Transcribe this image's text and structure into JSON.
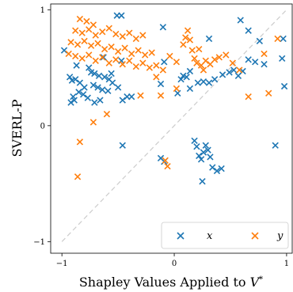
{
  "chart_data": {
    "type": "scatter",
    "xlabel": "Shapley Values Applied to V*",
    "xlabel_main": "Shapley Values Applied to ",
    "xlabel_var": "V",
    "xlabel_sup": "*",
    "ylabel": "SVERL-P",
    "xlim": [
      -1.1,
      1.05
    ],
    "ylim": [
      -1.1,
      1.05
    ],
    "xticks": [
      -1,
      0,
      1
    ],
    "yticks": [
      -1,
      0,
      1
    ],
    "xtick_labels": [
      "−1",
      "0",
      "1"
    ],
    "ytick_labels": [
      "−1",
      "0",
      "1"
    ],
    "grid": false,
    "legend_position": "bottom-right",
    "reference_line": {
      "style": "dashed",
      "color": "#cccccc",
      "from": [
        -1,
        -1
      ],
      "to": [
        1,
        1
      ]
    },
    "marker": "x",
    "series": [
      {
        "name": "x",
        "color": "#1f77b4",
        "points": [
          [
            -0.51,
            0.95
          ],
          [
            -0.47,
            0.95
          ],
          [
            -0.1,
            0.85
          ],
          [
            -0.98,
            0.65
          ],
          [
            -0.87,
            0.52
          ],
          [
            -0.93,
            0.42
          ],
          [
            -0.91,
            0.39
          ],
          [
            -0.88,
            0.4
          ],
          [
            -0.84,
            0.37
          ],
          [
            -0.8,
            0.33
          ],
          [
            -0.76,
            0.5
          ],
          [
            -0.74,
            0.46
          ],
          [
            -0.71,
            0.45
          ],
          [
            -0.67,
            0.43
          ],
          [
            -0.62,
            0.42
          ],
          [
            -0.58,
            0.4
          ],
          [
            -0.72,
            0.35
          ],
          [
            -0.68,
            0.33
          ],
          [
            -0.64,
            0.31
          ],
          [
            -0.59,
            0.3
          ],
          [
            -0.55,
            0.37
          ],
          [
            -0.5,
            0.33
          ],
          [
            -0.46,
            0.22
          ],
          [
            -0.42,
            0.25
          ],
          [
            -0.9,
            0.25
          ],
          [
            -0.92,
            0.2
          ],
          [
            -0.89,
            0.22
          ],
          [
            -0.85,
            0.29
          ],
          [
            -0.81,
            0.27
          ],
          [
            -0.77,
            0.24
          ],
          [
            -0.71,
            0.2
          ],
          [
            -0.66,
            0.22
          ],
          [
            -0.47,
            0.56
          ],
          [
            -0.63,
            0.59
          ],
          [
            -0.56,
            0.45
          ],
          [
            -0.12,
            0.36
          ],
          [
            0.06,
            0.4
          ],
          [
            0.08,
            0.43
          ],
          [
            0.11,
            0.42
          ],
          [
            0.14,
            0.47
          ],
          [
            0.21,
            0.37
          ],
          [
            0.26,
            0.38
          ],
          [
            0.31,
            0.37
          ],
          [
            0.36,
            0.4
          ],
          [
            0.43,
            0.44
          ],
          [
            0.49,
            0.46
          ],
          [
            0.53,
            0.48
          ],
          [
            0.57,
            0.43
          ],
          [
            0.61,
            0.47
          ],
          [
            0.66,
            0.57
          ],
          [
            0.72,
            0.55
          ],
          [
            0.8,
            0.53
          ],
          [
            0.31,
            0.75
          ],
          [
            0.59,
            0.91
          ],
          [
            0.66,
            0.82
          ],
          [
            0.76,
            0.73
          ],
          [
            0.97,
            0.75
          ],
          [
            0.96,
            0.58
          ],
          [
            0.98,
            0.34
          ],
          [
            0.9,
            -0.17
          ],
          [
            0.03,
            0.28
          ],
          [
            0.14,
            0.32
          ],
          [
            -0.09,
            0.55
          ],
          [
            -0.46,
            -0.17
          ],
          [
            -0.12,
            -0.28
          ],
          [
            -0.09,
            -0.31
          ],
          [
            0.18,
            -0.13
          ],
          [
            0.2,
            -0.18
          ],
          [
            0.22,
            -0.26
          ],
          [
            0.24,
            -0.29
          ],
          [
            0.26,
            -0.23
          ],
          [
            0.28,
            -0.17
          ],
          [
            0.3,
            -0.21
          ],
          [
            0.32,
            -0.27
          ],
          [
            0.34,
            -0.36
          ],
          [
            0.38,
            -0.39
          ],
          [
            0.42,
            -0.37
          ],
          [
            0.25,
            -0.48
          ],
          [
            -0.38,
            0.25
          ]
        ]
      },
      {
        "name": "y",
        "color": "#ff7f0e",
        "points": [
          [
            -0.84,
            0.92
          ],
          [
            -0.78,
            0.9
          ],
          [
            -0.72,
            0.87
          ],
          [
            -0.88,
            0.82
          ],
          [
            -0.82,
            0.8
          ],
          [
            -0.76,
            0.83
          ],
          [
            -0.7,
            0.78
          ],
          [
            -0.64,
            0.81
          ],
          [
            -0.58,
            0.84
          ],
          [
            -0.52,
            0.79
          ],
          [
            -0.46,
            0.77
          ],
          [
            -0.4,
            0.8
          ],
          [
            -0.34,
            0.75
          ],
          [
            -0.28,
            0.78
          ],
          [
            -0.92,
            0.72
          ],
          [
            -0.86,
            0.7
          ],
          [
            -0.8,
            0.73
          ],
          [
            -0.74,
            0.69
          ],
          [
            -0.68,
            0.71
          ],
          [
            -0.62,
            0.66
          ],
          [
            -0.56,
            0.68
          ],
          [
            -0.5,
            0.64
          ],
          [
            -0.44,
            0.67
          ],
          [
            -0.38,
            0.62
          ],
          [
            -0.32,
            0.65
          ],
          [
            -0.26,
            0.61
          ],
          [
            -0.2,
            0.63
          ],
          [
            -0.94,
            0.62
          ],
          [
            -0.88,
            0.6
          ],
          [
            -0.82,
            0.58
          ],
          [
            -0.76,
            0.61
          ],
          [
            -0.7,
            0.56
          ],
          [
            -0.64,
            0.59
          ],
          [
            -0.58,
            0.54
          ],
          [
            -0.52,
            0.57
          ],
          [
            -0.46,
            0.53
          ],
          [
            -0.4,
            0.56
          ],
          [
            -0.34,
            0.51
          ],
          [
            -0.28,
            0.54
          ],
          [
            -0.22,
            0.5
          ],
          [
            -0.16,
            0.52
          ],
          [
            -0.1,
            0.48
          ],
          [
            -0.04,
            0.6
          ],
          [
            0.02,
            0.55
          ],
          [
            0.08,
            0.7
          ],
          [
            0.1,
            0.76
          ],
          [
            0.12,
            0.82
          ],
          [
            0.14,
            0.74
          ],
          [
            0.16,
            0.65
          ],
          [
            0.18,
            0.58
          ],
          [
            0.2,
            0.54
          ],
          [
            0.22,
            0.66
          ],
          [
            0.24,
            0.52
          ],
          [
            0.26,
            0.48
          ],
          [
            0.28,
            0.56
          ],
          [
            0.32,
            0.53
          ],
          [
            0.36,
            0.57
          ],
          [
            0.4,
            0.59
          ],
          [
            0.46,
            0.61
          ],
          [
            0.52,
            0.54
          ],
          [
            0.58,
            0.48
          ],
          [
            0.66,
            0.25
          ],
          [
            0.8,
            0.62
          ],
          [
            0.84,
            0.28
          ],
          [
            0.92,
            0.75
          ],
          [
            -0.84,
            -0.14
          ],
          [
            -0.86,
            -0.44
          ],
          [
            -0.72,
            0.03
          ],
          [
            -0.6,
            0.1
          ],
          [
            -0.3,
            0.26
          ],
          [
            -0.12,
            0.26
          ],
          [
            -0.08,
            -0.3
          ],
          [
            -0.06,
            -0.35
          ],
          [
            -0.16,
            0.42
          ],
          [
            0.02,
            0.32
          ]
        ]
      }
    ]
  }
}
